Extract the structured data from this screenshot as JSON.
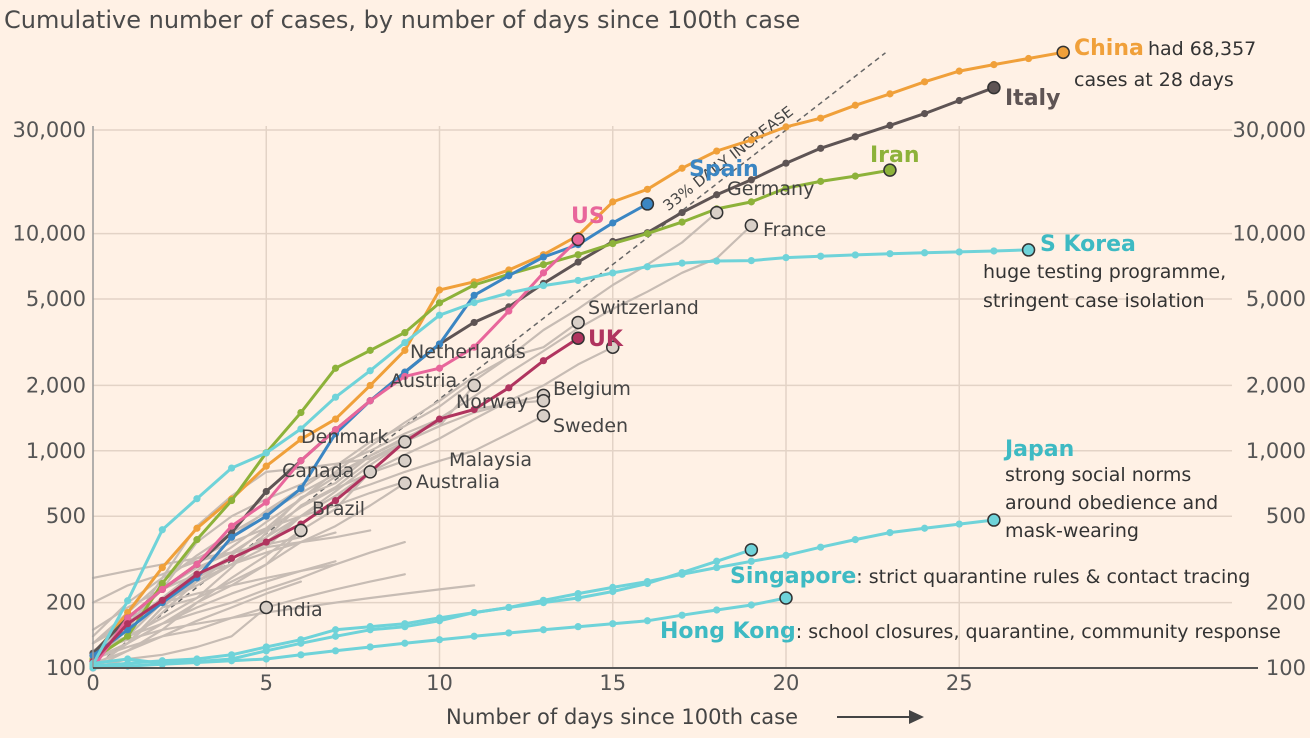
{
  "chart_data": {
    "type": "line",
    "title": "Cumulative number of cases, by number of days since 100th case",
    "xlabel": "Number of days since 100th case",
    "xlim": [
      0,
      31.5
    ],
    "ylim": [
      100,
      68000
    ],
    "yscale": "log",
    "x_ticks": [
      0,
      5,
      10,
      15,
      20,
      25
    ],
    "y_ticks": [
      {
        "value": 100,
        "label": "100"
      },
      {
        "value": 200,
        "label": "200"
      },
      {
        "value": 500,
        "label": "500"
      },
      {
        "value": 1000,
        "label": "1,000"
      },
      {
        "value": 2000,
        "label": "2,000"
      },
      {
        "value": 5000,
        "label": "5,000"
      },
      {
        "value": 10000,
        "label": "10,000"
      },
      {
        "value": 30000,
        "label": "30,000"
      }
    ],
    "reference_line": {
      "label": "33% DAILY INCREASE",
      "growth_rate": 1.33
    },
    "series": [
      {
        "name": "China",
        "color": "#f0a03a",
        "highlight": true,
        "end_marker": true,
        "values": [
          114,
          180,
          290,
          440,
          600,
          850,
          1130,
          1400,
          2000,
          2900,
          5500,
          6000,
          6800,
          8000,
          9800,
          14000,
          16000,
          20000,
          24000,
          27000,
          31000,
          34000,
          39000,
          44000,
          50000,
          56000,
          60000,
          64000,
          68357
        ],
        "annotation": {
          "label": "China",
          "note": [
            "had 68,357",
            "cases at 28 days"
          ]
        }
      },
      {
        "name": "Italy",
        "color": "#5e5454",
        "highlight": true,
        "end_marker": true,
        "values": [
          117,
          170,
          230,
          300,
          420,
          650,
          900,
          1250,
          1700,
          2300,
          3100,
          3900,
          4600,
          5900,
          7400,
          9200,
          10100,
          12500,
          15100,
          17700,
          21100,
          24700,
          27900,
          31500,
          35700,
          41000,
          47000
        ],
        "annotation": {
          "label": "Italy"
        }
      },
      {
        "name": "Iran",
        "color": "#8db23a",
        "highlight": true,
        "end_marker": true,
        "values": [
          110,
          140,
          245,
          390,
          590,
          980,
          1500,
          2400,
          2900,
          3500,
          4800,
          5800,
          6500,
          7200,
          8000,
          9000,
          10000,
          11300,
          13000,
          14000,
          16200,
          17400,
          18400,
          19600
        ],
        "annotation": {
          "label": "Iran"
        }
      },
      {
        "name": "Spain",
        "color": "#3b86c3",
        "highlight": true,
        "end_marker": true,
        "values": [
          114,
          150,
          200,
          260,
          400,
          500,
          670,
          1200,
          1700,
          2300,
          3100,
          5200,
          6400,
          7800,
          8900,
          11200,
          13700
        ],
        "annotation": {
          "label": "Spain"
        }
      },
      {
        "name": "US",
        "color": "#e8669b",
        "highlight": true,
        "end_marker": true,
        "values": [
          100,
          170,
          230,
          300,
          450,
          580,
          900,
          1250,
          1700,
          2200,
          2400,
          3000,
          4400,
          6600,
          9400
        ],
        "annotation": {
          "label": "US"
        }
      },
      {
        "name": "UK",
        "color": "#b0345f",
        "highlight": true,
        "end_marker": true,
        "values": [
          107,
          160,
          205,
          270,
          320,
          380,
          460,
          590,
          800,
          1100,
          1400,
          1550,
          1950,
          2600,
          3300
        ],
        "annotation": {
          "label": "UK"
        }
      },
      {
        "name": "S Korea",
        "color": "#6fd3d9",
        "highlight": true,
        "end_marker": true,
        "values": [
          104,
          204,
          433,
          602,
          833,
          977,
          1261,
          1766,
          2337,
          3150,
          4212,
          4812,
          5328,
          5766,
          6088,
          6593,
          7041,
          7313,
          7478,
          7513,
          7755,
          7869,
          7979,
          8086,
          8162,
          8236,
          8320,
          8413
        ],
        "annotation": {
          "label": "S Korea",
          "note": [
            "huge testing programme,",
            "stringent case isolation"
          ]
        }
      },
      {
        "name": "Japan",
        "color": "#6fd3d9",
        "highlight": true,
        "end_marker": true,
        "values": [
          105,
          110,
          105,
          107,
          110,
          120,
          130,
          140,
          150,
          155,
          165,
          180,
          190,
          205,
          220,
          235,
          250,
          270,
          290,
          310,
          330,
          360,
          390,
          420,
          440,
          460,
          480
        ],
        "annotation": {
          "label": "Japan",
          "note": [
            "strong social norms",
            "around obedience and",
            "mask-wearing"
          ]
        }
      },
      {
        "name": "Singapore",
        "color": "#6fd3d9",
        "highlight": true,
        "end_marker": true,
        "values": [
          102,
          105,
          108,
          110,
          115,
          125,
          135,
          150,
          155,
          160,
          170,
          180,
          190,
          200,
          210,
          225,
          245,
          275,
          310,
          350
        ],
        "annotation": {
          "label": "Singapore",
          "note": [
            ": strict quarantine rules & contact tracing"
          ]
        }
      },
      {
        "name": "Hong Kong",
        "color": "#6fd3d9",
        "highlight": true,
        "end_marker": true,
        "values": [
          100,
          102,
          104,
          106,
          108,
          110,
          115,
          120,
          125,
          130,
          135,
          140,
          145,
          150,
          155,
          160,
          165,
          175,
          185,
          195,
          210
        ],
        "annotation": {
          "label": "Hong Kong",
          "note": [
            ": school closures, quarantine, community response"
          ]
        }
      },
      {
        "name": "Germany",
        "color": "#c7bcb4",
        "highlight": false,
        "end_marker": true,
        "values": [
          130,
          160,
          200,
          260,
          400,
          530,
          670,
          850,
          1100,
          1300,
          1600,
          2100,
          2700,
          3600,
          4500,
          5800,
          7200,
          9100,
          12500
        ],
        "annotation": {
          "label": "Germany"
        }
      },
      {
        "name": "France",
        "color": "#c7bcb4",
        "highlight": false,
        "end_marker": true,
        "values": [
          100,
          130,
          190,
          210,
          290,
          420,
          610,
          710,
          950,
          1130,
          1410,
          1780,
          2280,
          2880,
          3660,
          4500,
          5400,
          6600,
          7700,
          10900
        ],
        "annotation": {
          "label": "France"
        }
      },
      {
        "name": "Switzerland",
        "color": "#c7bcb4",
        "highlight": false,
        "end_marker": true,
        "values": [
          120,
          150,
          200,
          260,
          330,
          440,
          600,
          800,
          1050,
          1350,
          1700,
          2200,
          2700,
          3000,
          3900
        ],
        "annotation": {
          "label": "Switzerland"
        }
      },
      {
        "name": "Netherlands",
        "color": "#c7bcb4",
        "highlight": false,
        "end_marker": true,
        "values": [
          110,
          130,
          190,
          260,
          320,
          380,
          500,
          620,
          800,
          960,
          1140,
          1400,
          1700,
          2000,
          2500,
          3000
        ],
        "annotation": {
          "label": "Netherlands"
        }
      },
      {
        "name": "Austria",
        "color": "#c7bcb4",
        "highlight": false,
        "end_marker": true,
        "values": [
          110,
          130,
          180,
          250,
          300,
          360,
          500,
          650,
          860,
          1100,
          1300,
          2000
        ],
        "annotation": {
          "label": "Austria"
        }
      },
      {
        "name": "Belgium",
        "color": "#c7bcb4",
        "highlight": false,
        "end_marker": true,
        "values": [
          110,
          160,
          200,
          240,
          300,
          400,
          560,
          680,
          900,
          1100,
          1300,
          1500,
          1650,
          1800
        ],
        "annotation": {
          "label": "Belgium"
        }
      },
      {
        "name": "Norway",
        "color": "#c7bcb4",
        "highlight": false,
        "end_marker": true,
        "values": [
          110,
          160,
          230,
          380,
          500,
          600,
          700,
          850,
          1000,
          1200,
          1400,
          1550,
          1650,
          1700
        ],
        "annotation": {
          "label": "Norway"
        }
      },
      {
        "name": "Sweden",
        "color": "#c7bcb4",
        "highlight": false,
        "end_marker": true,
        "values": [
          110,
          140,
          200,
          250,
          320,
          400,
          500,
          620,
          700,
          800,
          900,
          1000,
          1200,
          1450
        ],
        "annotation": {
          "label": "Sweden"
        }
      },
      {
        "name": "Denmark",
        "color": "#c7bcb4",
        "highlight": false,
        "end_marker": true,
        "values": [
          110,
          150,
          260,
          450,
          620,
          800,
          830,
          870,
          920,
          1100
        ],
        "annotation": {
          "label": "Denmark"
        }
      },
      {
        "name": "Canada",
        "color": "#c7bcb4",
        "highlight": false,
        "end_marker": true,
        "values": [
          100,
          130,
          160,
          200,
          260,
          330,
          430,
          540,
          800
        ],
        "annotation": {
          "label": "Canada"
        }
      },
      {
        "name": "Malaysia",
        "color": "#c7bcb4",
        "highlight": false,
        "end_marker": true,
        "values": [
          110,
          170,
          230,
          290,
          340,
          430,
          550,
          670,
          790,
          900
        ],
        "annotation": {
          "label": "Malaysia"
        }
      },
      {
        "name": "Australia",
        "color": "#c7bcb4",
        "highlight": false,
        "end_marker": true,
        "values": [
          110,
          140,
          170,
          210,
          250,
          300,
          380,
          450,
          560,
          710
        ],
        "annotation": {
          "label": "Australia"
        }
      },
      {
        "name": "Brazil",
        "color": "#c7bcb4",
        "highlight": false,
        "end_marker": true,
        "values": [
          100,
          120,
          150,
          200,
          240,
          300,
          430
        ],
        "annotation": {
          "label": "Brazil"
        }
      },
      {
        "name": "India",
        "color": "#c7bcb4",
        "highlight": false,
        "end_marker": true,
        "values": [
          100,
          110,
          115,
          125,
          140,
          190
        ],
        "annotation": {
          "label": "India"
        }
      },
      {
        "name": "",
        "color": "#c7bcb4",
        "highlight": false,
        "end_marker": false,
        "values": [
          260,
          280,
          300,
          320,
          340,
          360,
          380,
          400,
          430
        ]
      },
      {
        "name": "",
        "color": "#c7bcb4",
        "highlight": false,
        "end_marker": false,
        "values": [
          200,
          240,
          270,
          310,
          340,
          370,
          400
        ]
      },
      {
        "name": "",
        "color": "#c7bcb4",
        "highlight": false,
        "end_marker": false,
        "values": [
          150,
          190,
          230,
          270,
          300,
          340,
          380,
          420
        ]
      },
      {
        "name": "",
        "color": "#c7bcb4",
        "highlight": false,
        "end_marker": false,
        "values": [
          130,
          170,
          200,
          220,
          240,
          260,
          280,
          300
        ]
      },
      {
        "name": "",
        "color": "#c7bcb4",
        "highlight": false,
        "end_marker": false,
        "values": [
          120,
          140,
          160,
          180,
          200,
          230,
          260,
          300,
          340,
          380
        ]
      },
      {
        "name": "",
        "color": "#c7bcb4",
        "highlight": false,
        "end_marker": false,
        "values": [
          140,
          200,
          260,
          320,
          380,
          440,
          500,
          560,
          640,
          720
        ]
      },
      {
        "name": "",
        "color": "#c7bcb4",
        "highlight": false,
        "end_marker": false,
        "values": [
          110,
          130,
          160,
          190,
          220,
          250,
          280,
          310
        ]
      },
      {
        "name": "",
        "color": "#c7bcb4",
        "highlight": false,
        "end_marker": false,
        "values": [
          110,
          125,
          140,
          150,
          170,
          190,
          210,
          230,
          250,
          270
        ]
      },
      {
        "name": "",
        "color": "#c7bcb4",
        "highlight": false,
        "end_marker": false,
        "values": [
          120,
          135,
          150,
          160,
          170,
          180,
          190,
          200,
          210,
          220,
          230,
          240
        ]
      },
      {
        "name": "",
        "color": "#c7bcb4",
        "highlight": false,
        "end_marker": false,
        "values": [
          105,
          120,
          140,
          165,
          190,
          220,
          250
        ]
      },
      {
        "name": "",
        "color": "#c7bcb4",
        "highlight": false,
        "end_marker": false,
        "values": [
          130,
          180,
          250,
          330,
          420,
          520,
          640,
          780,
          950,
          1150,
          1350
        ]
      },
      {
        "name": "",
        "color": "#c7bcb4",
        "highlight": false,
        "end_marker": false,
        "values": [
          115,
          160,
          210,
          280,
          360,
          470,
          600,
          760,
          950
        ]
      }
    ]
  }
}
